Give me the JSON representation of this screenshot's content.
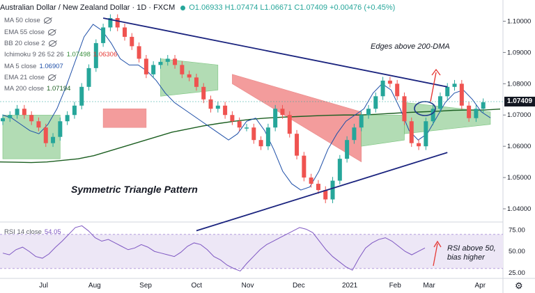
{
  "header": {
    "symbol": "Australian Dollar / New Zealand Dollar · 1D · FXCM",
    "ohlc": "O1.06933 H1.07474 L1.06671 C1.07409 +0.00476 (+0.45%)"
  },
  "legend": [
    {
      "label": "MA 50 close",
      "value": "",
      "color": "#5d606b",
      "hidden": true
    },
    {
      "label": "EMA 55 close",
      "value": "",
      "color": "#5d606b",
      "hidden": true
    },
    {
      "label": "BB 20 close 2",
      "value": "",
      "color": "#5d606b",
      "hidden": true
    },
    {
      "label": "Ichimoku 9 26 52 26",
      "value": "1.07498",
      "value2": "1.06306",
      "color": "#388e3c",
      "color2": "#e53935",
      "hidden": false
    },
    {
      "label": "MA 5 close",
      "value": "1.06907",
      "color": "#1e4fa8",
      "hidden": false
    },
    {
      "label": "EMA 21 close",
      "value": "",
      "color": "#5d606b",
      "hidden": true
    },
    {
      "label": "MA 200 close",
      "value": "1.07194",
      "color": "#1b5e20",
      "hidden": false
    }
  ],
  "annotations": {
    "edges": "Edges above 200-DMA",
    "pattern": "Symmetric Triangle Pattern",
    "rsi": "RSI above 50,\nbias higher"
  },
  "rsi_panel": {
    "label": "RSI 14 close",
    "value": "54.05"
  },
  "current_price": "1.07409",
  "colors": {
    "bull": "#26a69a",
    "bear": "#ef5350",
    "trend": "#1a237e",
    "rsi": "#7e57c2",
    "cloud_bull": "#a5d6a7",
    "cloud_bear": "#f28b8b"
  },
  "chart_data": [
    {
      "type": "candlestick",
      "title": "Australian Dollar / New Zealand Dollar · 1D · FXCM",
      "x_ticks": [
        "Jul",
        "Aug",
        "Sep",
        "Oct",
        "Nov",
        "Dec",
        "2021",
        "Feb",
        "Mar",
        "Apr"
      ],
      "y_ticks": [
        "1.10000",
        "1.09000",
        "1.08000",
        "1.07000",
        "1.06000",
        "1.05000",
        "1.04000"
      ],
      "ylim": [
        1.036,
        1.105
      ],
      "x_range": [
        0,
        68
      ],
      "closes": [
        1.069,
        1.07,
        1.072,
        1.07,
        1.068,
        1.066,
        1.061,
        1.063,
        1.068,
        1.07,
        1.073,
        1.079,
        1.085,
        1.093,
        1.098,
        1.101,
        1.098,
        1.095,
        1.092,
        1.088,
        1.083,
        1.086,
        1.087,
        1.088,
        1.086,
        1.083,
        1.082,
        1.079,
        1.075,
        1.072,
        1.073,
        1.07,
        1.068,
        1.066,
        1.066,
        1.062,
        1.06,
        1.066,
        1.072,
        1.07,
        1.064,
        1.057,
        1.05,
        1.048,
        1.046,
        1.043,
        1.049,
        1.056,
        1.062,
        1.066,
        1.07,
        1.072,
        1.076,
        1.081,
        1.08,
        1.076,
        1.068,
        1.061,
        1.06,
        1.068,
        1.072,
        1.076,
        1.079,
        1.08,
        1.073,
        1.069,
        1.072,
        1.0741
      ],
      "ma200": [
        1.055,
        1.0549,
        1.0548,
        1.055,
        1.0555,
        1.056,
        1.057,
        1.0585,
        1.06,
        1.0615,
        1.063,
        1.0645,
        1.0655,
        1.0665,
        1.0673,
        1.068,
        1.0686,
        1.069,
        1.0693,
        1.0695,
        1.0697,
        1.0699,
        1.07,
        1.07,
        1.0702,
        1.0705,
        1.0708,
        1.071,
        1.0712,
        1.0715,
        1.0716,
        1.0716,
        1.0719
      ],
      "ma5": [
        1.07,
        1.069,
        1.067,
        1.065,
        1.064,
        1.067,
        1.072,
        1.079,
        1.087,
        1.095,
        1.099,
        1.097,
        1.093,
        1.088,
        1.086,
        1.086,
        1.084,
        1.081,
        1.077,
        1.074,
        1.072,
        1.07,
        1.068,
        1.066,
        1.064,
        1.062,
        1.064,
        1.068,
        1.069,
        1.065,
        1.059,
        1.052,
        1.048,
        1.046,
        1.047,
        1.052,
        1.059,
        1.064,
        1.068,
        1.07,
        1.072,
        1.077,
        1.08,
        1.078,
        1.072,
        1.065,
        1.062,
        1.064,
        1.069,
        1.074,
        1.077,
        1.078,
        1.075,
        1.071,
        1.0691
      ],
      "cloud": [
        {
          "x": [
            0,
            8
          ],
          "top": [
            1.07,
            1.07
          ],
          "bottom": [
            1.056,
            1.056
          ],
          "kind": "bull"
        },
        {
          "x": [
            14,
            20
          ],
          "top": [
            1.072,
            1.072
          ],
          "bottom": [
            1.066,
            1.066
          ],
          "kind": "bear"
        },
        {
          "x": [
            22,
            30
          ],
          "top": [
            1.088,
            1.086
          ],
          "bottom": [
            1.076,
            1.078
          ],
          "kind": "bull"
        },
        {
          "x": [
            32,
            50
          ],
          "top": [
            1.083,
            1.071
          ],
          "bottom": [
            1.08,
            1.055
          ],
          "kind": "bear"
        },
        {
          "x": [
            50,
            56
          ],
          "top": [
            1.07,
            1.07
          ],
          "bottom": [
            1.06,
            1.062
          ],
          "kind": "bull"
        },
        {
          "x": [
            56,
            68
          ],
          "top": [
            1.074,
            1.071
          ],
          "bottom": [
            1.064,
            1.067
          ],
          "kind": "bull"
        }
      ],
      "trendlines": [
        {
          "name": "upper",
          "x": [
            14,
            62
          ],
          "y": [
            1.101,
            1.079
          ]
        },
        {
          "name": "lower",
          "x": [
            27,
            62
          ],
          "y": [
            1.033,
            1.058
          ]
        }
      ]
    },
    {
      "type": "line",
      "title": "RSI 14 close",
      "y_ticks": [
        "75.00",
        "50.00",
        "25.00"
      ],
      "ylim": [
        20,
        82
      ],
      "band": [
        30,
        70
      ],
      "values": [
        48,
        46,
        52,
        55,
        50,
        44,
        42,
        47,
        55,
        62,
        70,
        78,
        80,
        74,
        66,
        62,
        64,
        60,
        56,
        52,
        54,
        58,
        55,
        50,
        48,
        46,
        44,
        49,
        56,
        60,
        58,
        52,
        44,
        40,
        34,
        30,
        27,
        36,
        44,
        52,
        58,
        62,
        66,
        70,
        74,
        78,
        76,
        72,
        62,
        52,
        44,
        38,
        32,
        28,
        42,
        54,
        60,
        64,
        66,
        62,
        56,
        50,
        46,
        50,
        54
      ]
    }
  ]
}
